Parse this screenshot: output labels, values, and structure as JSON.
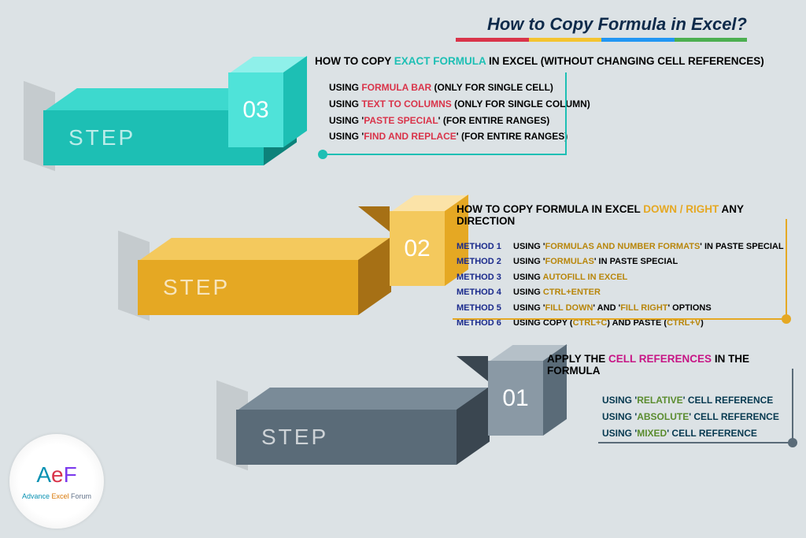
{
  "title": "How to Copy Formula in Excel?",
  "underline_colors": [
    "#d9344a",
    "#f4c430",
    "#2196f3",
    "#4caf50"
  ],
  "background": "#dce2e5",
  "steps": [
    {
      "num": "03",
      "label": "STEP",
      "colors": {
        "bar_front": "#1dbfb4",
        "bar_top": "#3dd9ce",
        "bar_side": "#0d827a",
        "num_front": "#4fe3d9",
        "num_top": "#8ff0ea",
        "num_side": "#1dbfb4",
        "connector": "#1dbfb4",
        "dot": "#1dbfb4"
      },
      "heading_parts": [
        {
          "t": "HOW TO COPY ",
          "c": "#000"
        },
        {
          "t": "EXACT FORMULA",
          "c": "#1dbfb4"
        },
        {
          "t": " IN EXCEL (WITHOUT CHANGING CELL REFERENCES)",
          "c": "#000"
        }
      ],
      "items": [
        [
          {
            "t": "USING ",
            "c": "#000"
          },
          {
            "t": "FORMULA BAR",
            "c": "#d9344a"
          },
          {
            "t": " (ONLY FOR SINGLE CELL)",
            "c": "#000"
          }
        ],
        [
          {
            "t": "USING ",
            "c": "#000"
          },
          {
            "t": "TEXT TO COLUMNS",
            "c": "#d9344a"
          },
          {
            "t": " (ONLY FOR SINGLE COLUMN)",
            "c": "#000"
          }
        ],
        [
          {
            "t": "USING '",
            "c": "#000"
          },
          {
            "t": "PASTE SPECIAL",
            "c": "#d9344a"
          },
          {
            "t": "' (FOR ENTIRE RANGES)",
            "c": "#000"
          }
        ],
        [
          {
            "t": "USING '",
            "c": "#000"
          },
          {
            "t": "FIND AND REPLACE",
            "c": "#d9344a"
          },
          {
            "t": "' (FOR ENTIRE RANGES)",
            "c": "#000"
          }
        ]
      ]
    },
    {
      "num": "02",
      "label": "STEP",
      "colors": {
        "bar_front": "#e5a823",
        "bar_top": "#f4c95d",
        "bar_side": "#a67015",
        "num_front": "#f4c95d",
        "num_top": "#fbe3a8",
        "num_side": "#e5a823",
        "connector": "#e5a823",
        "dot": "#e5a823"
      },
      "heading_parts": [
        {
          "t": "HOW TO COPY FORMULA IN EXCEL ",
          "c": "#000"
        },
        {
          "t": "DOWN / RIGHT",
          "c": "#e5a823"
        },
        {
          "t": " ANY DIRECTION",
          "c": "#000"
        }
      ],
      "methods": [
        {
          "lbl": "METHOD 1",
          "parts": [
            {
              "t": "USING '",
              "c": "#000"
            },
            {
              "t": "FORMULAS AND NUMBER FORMATS",
              "c": "#b8860b"
            },
            {
              "t": "' IN PASTE SPECIAL",
              "c": "#000"
            }
          ]
        },
        {
          "lbl": "METHOD 2",
          "parts": [
            {
              "t": "USING '",
              "c": "#000"
            },
            {
              "t": "FORMULAS",
              "c": "#b8860b"
            },
            {
              "t": "' IN PASTE SPECIAL",
              "c": "#000"
            }
          ]
        },
        {
          "lbl": "METHOD 3",
          "parts": [
            {
              "t": "USING ",
              "c": "#000"
            },
            {
              "t": "AUTOFILL IN EXCEL",
              "c": "#b8860b"
            }
          ]
        },
        {
          "lbl": "METHOD 4",
          "parts": [
            {
              "t": "USING ",
              "c": "#000"
            },
            {
              "t": "CTRL+ENTER",
              "c": "#b8860b"
            }
          ]
        },
        {
          "lbl": "METHOD 5",
          "parts": [
            {
              "t": "USING '",
              "c": "#000"
            },
            {
              "t": "FILL DOWN",
              "c": "#b8860b"
            },
            {
              "t": "' AND '",
              "c": "#000"
            },
            {
              "t": "FILL RIGHT",
              "c": "#b8860b"
            },
            {
              "t": "' OPTIONS",
              "c": "#000"
            }
          ]
        },
        {
          "lbl": "METHOD 6",
          "parts": [
            {
              "t": "USING COPY (",
              "c": "#000"
            },
            {
              "t": "CTRL+C",
              "c": "#b8860b"
            },
            {
              "t": ") AND PASTE (",
              "c": "#000"
            },
            {
              "t": "CTRL+V",
              "c": "#b8860b"
            },
            {
              "t": ")",
              "c": "#000"
            }
          ]
        }
      ]
    },
    {
      "num": "01",
      "label": "STEP",
      "colors": {
        "bar_front": "#5a6b78",
        "bar_top": "#7a8b98",
        "bar_side": "#3a4650",
        "num_front": "#8a99a5",
        "num_top": "#b5c0c8",
        "num_side": "#5a6b78",
        "connector": "#5a6b78",
        "dot": "#5a6b78"
      },
      "heading_parts": [
        {
          "t": "APPLY THE ",
          "c": "#000"
        },
        {
          "t": "CELL REFERENCES",
          "c": "#c71585"
        },
        {
          "t": " IN THE FORMULA",
          "c": "#000"
        }
      ],
      "items": [
        [
          {
            "t": "USING '",
            "c": "#063950"
          },
          {
            "t": "RELATIVE",
            "c": "#5a8c2e"
          },
          {
            "t": "' CELL REFERENCE",
            "c": "#063950"
          }
        ],
        [
          {
            "t": "USING '",
            "c": "#063950"
          },
          {
            "t": "ABSOLUTE",
            "c": "#5a8c2e"
          },
          {
            "t": "' CELL REFERENCE",
            "c": "#063950"
          }
        ],
        [
          {
            "t": "USING '",
            "c": "#063950"
          },
          {
            "t": "MIXED",
            "c": "#5a8c2e"
          },
          {
            "t": "' CELL REFERENCE",
            "c": "#063950"
          }
        ]
      ]
    }
  ],
  "logo": {
    "brand_a": "Advance",
    "brand_e": " Excel ",
    "brand_f": "Forum"
  }
}
